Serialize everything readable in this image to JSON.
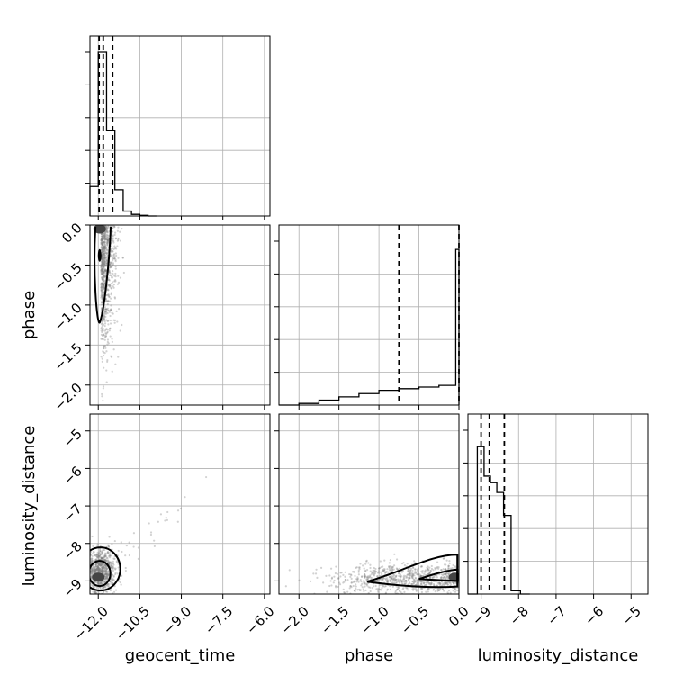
{
  "chart_data": {
    "type": "corner",
    "parameters": [
      "geocent_time",
      "phase",
      "luminosity_distance"
    ],
    "axis_labels": {
      "geocent_time": "geocent_time",
      "phase": "phase",
      "luminosity_distance": "luminosity_distance"
    },
    "ranges": {
      "geocent_time": [
        -12.3,
        -5.8
      ],
      "phase": [
        -2.25,
        0.0
      ],
      "luminosity_distance": [
        -9.35,
        -4.55
      ]
    },
    "ticks": {
      "geocent_time": [
        -12.0,
        -10.5,
        -9.0,
        -7.5,
        -6.0
      ],
      "phase": [
        -2.0,
        -1.5,
        -1.0,
        -0.5,
        0.0
      ],
      "luminosity_distance": [
        -9,
        -8,
        -7,
        -6,
        -5
      ]
    },
    "tick_labels": {
      "geocent_time": [
        "−12.0",
        "−10.5",
        "−9.0",
        "−7.5",
        "−6.0"
      ],
      "phase": [
        "−2.0",
        "−1.5",
        "−1.0",
        "−0.5",
        "0.0"
      ],
      "luminosity_distance": [
        "−9",
        "−8",
        "−7",
        "−6",
        "−5"
      ]
    },
    "histograms": {
      "geocent_time": {
        "edges": [
          -12.3,
          -12.0,
          -11.7,
          -11.4,
          -11.1,
          -10.8,
          -10.5,
          -10.2,
          -9.9
        ],
        "counts": [
          0.18,
          1.0,
          0.52,
          0.16,
          0.03,
          0.01,
          0.004,
          0.0
        ],
        "quantiles": [
          -11.97,
          -11.82,
          -11.48
        ]
      },
      "phase": {
        "edges": [
          -2.25,
          -2.0,
          -1.75,
          -1.5,
          -1.25,
          -1.0,
          -0.75,
          -0.5,
          -0.25,
          -0.04,
          0.0
        ],
        "counts": [
          0.0,
          0.01,
          0.03,
          0.05,
          0.07,
          0.09,
          0.1,
          0.11,
          0.12,
          0.95
        ],
        "quantiles": [
          -0.75,
          0.0
        ]
      },
      "luminosity_distance": {
        "edges": [
          -9.35,
          -9.1,
          -8.92,
          -8.75,
          -8.58,
          -8.4,
          -8.2,
          -7.95,
          -7.7
        ],
        "counts": [
          0.0,
          0.9,
          0.72,
          0.68,
          0.62,
          0.48,
          0.02,
          0.0
        ],
        "quantiles": [
          -9.0,
          -8.78,
          -8.38
        ]
      }
    },
    "scatter_panels": [
      {
        "x": "geocent_time",
        "y": "phase",
        "cloud_center": [
          -11.85,
          -0.9
        ],
        "cloud_spread": [
          0.25,
          0.55
        ],
        "high_density_at": [
          -11.95,
          -0.05
        ]
      },
      {
        "x": "geocent_time",
        "y": "luminosity_distance",
        "cloud_center": [
          -11.9,
          -8.75
        ],
        "cloud_spread": [
          0.25,
          0.28
        ],
        "high_density_at": [
          -12.0,
          -8.9
        ]
      },
      {
        "x": "phase",
        "y": "luminosity_distance",
        "cloud_center": [
          -0.6,
          -8.95
        ],
        "cloud_spread": [
          0.5,
          0.2
        ],
        "high_density_at": [
          -0.05,
          -8.9
        ]
      }
    ],
    "grid": true,
    "line_color": "#000000",
    "point_color": "#7f7f7f"
  }
}
